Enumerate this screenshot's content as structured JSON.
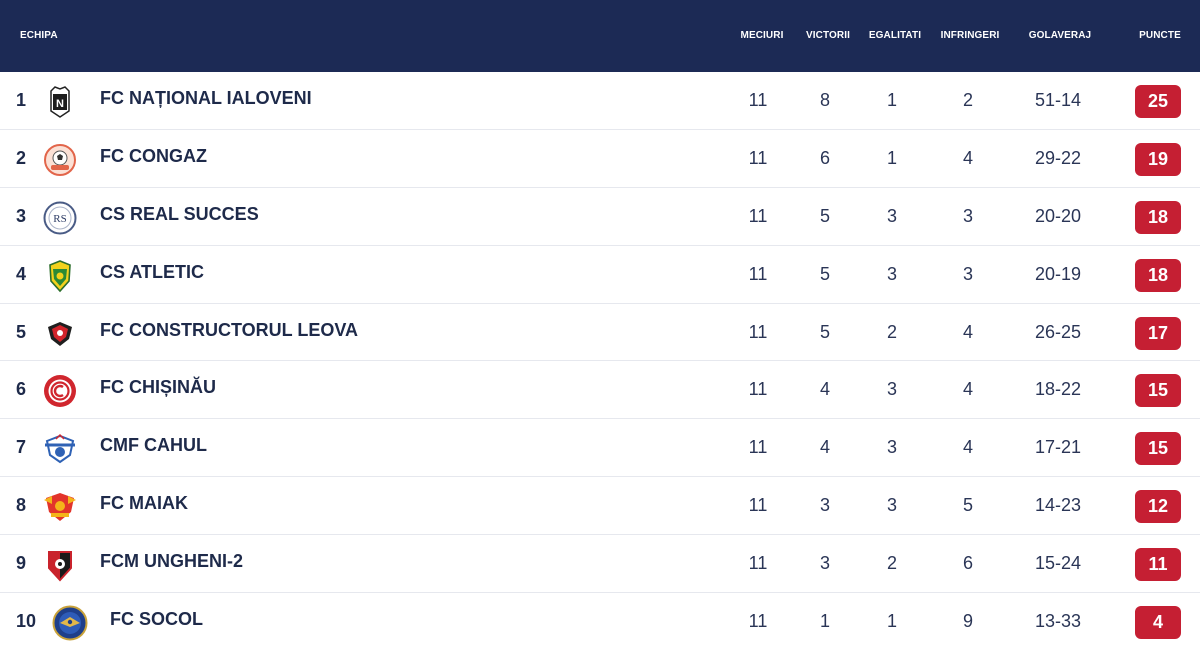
{
  "header": {
    "team": "ECHIPA",
    "played": "MECIURI",
    "wins": "VICTORII",
    "draws": "EGALITATI",
    "losses": "INFRINGERI",
    "goals": "GOLAVERAJ",
    "points": "PUNCTE"
  },
  "colors": {
    "header_bg": "#1c2a55",
    "points_badge": "#c51f33"
  },
  "rows": [
    {
      "pos": "1",
      "team": "FC NAȚIONAL IALOVENI",
      "played": "11",
      "wins": "8",
      "draws": "1",
      "losses": "2",
      "goals": "51-14",
      "points": "25",
      "logo": "nationali-ialoveni-crest-icon"
    },
    {
      "pos": "2",
      "team": "FC CONGAZ",
      "played": "11",
      "wins": "6",
      "draws": "1",
      "losses": "4",
      "goals": "29-22",
      "points": "19",
      "logo": "congaz-crest-icon"
    },
    {
      "pos": "3",
      "team": "CS REAL SUCCES",
      "played": "11",
      "wins": "5",
      "draws": "3",
      "losses": "3",
      "goals": "20-20",
      "points": "18",
      "logo": "real-succes-crest-icon"
    },
    {
      "pos": "4",
      "team": "CS ATLETIC",
      "played": "11",
      "wins": "5",
      "draws": "3",
      "losses": "3",
      "goals": "20-19",
      "points": "18",
      "logo": "atletic-crest-icon"
    },
    {
      "pos": "5",
      "team": "FC CONSTRUCTORUL LEOVA",
      "played": "11",
      "wins": "5",
      "draws": "2",
      "losses": "4",
      "goals": "26-25",
      "points": "17",
      "logo": "constructorul-crest-icon"
    },
    {
      "pos": "6",
      "team": "FC CHIȘINĂU",
      "played": "11",
      "wins": "4",
      "draws": "3",
      "losses": "4",
      "goals": "18-22",
      "points": "15",
      "logo": "chisinau-crest-icon"
    },
    {
      "pos": "7",
      "team": "CMF CAHUL",
      "played": "11",
      "wins": "4",
      "draws": "3",
      "losses": "4",
      "goals": "17-21",
      "points": "15",
      "logo": "cahul-crest-icon"
    },
    {
      "pos": "8",
      "team": "FC MAIAK",
      "played": "11",
      "wins": "3",
      "draws": "3",
      "losses": "5",
      "goals": "14-23",
      "points": "12",
      "logo": "maiak-crest-icon"
    },
    {
      "pos": "9",
      "team": "FCM UNGHENI-2",
      "played": "11",
      "wins": "3",
      "draws": "2",
      "losses": "6",
      "goals": "15-24",
      "points": "11",
      "logo": "ungheni-crest-icon"
    },
    {
      "pos": "10",
      "team": "FC SOCOL",
      "played": "11",
      "wins": "1",
      "draws": "1",
      "losses": "9",
      "goals": "13-33",
      "points": "4",
      "logo": "socol-crest-icon"
    }
  ]
}
